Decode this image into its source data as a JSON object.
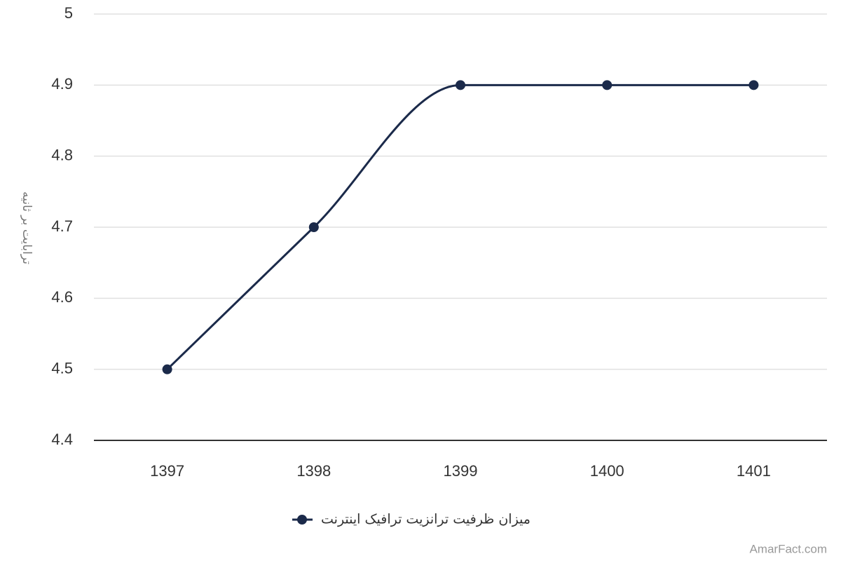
{
  "chart_data": {
    "type": "line",
    "y_label": "ترابایت بر ثانیه",
    "categories": [
      "1397",
      "1398",
      "1399",
      "1400",
      "1401"
    ],
    "series": [
      {
        "name": "میزان ظرفیت ترانزیت ترافیک اینترنت",
        "color": "#1b2a4a",
        "values": [
          4.5,
          4.7,
          4.9,
          4.9,
          4.9
        ]
      }
    ],
    "ylim": [
      4.4,
      5
    ],
    "yticks": [
      4.4,
      4.5,
      4.6,
      4.7,
      4.8,
      4.9,
      5
    ],
    "grid": true,
    "smooth": true,
    "credit": "AmarFact.com"
  }
}
